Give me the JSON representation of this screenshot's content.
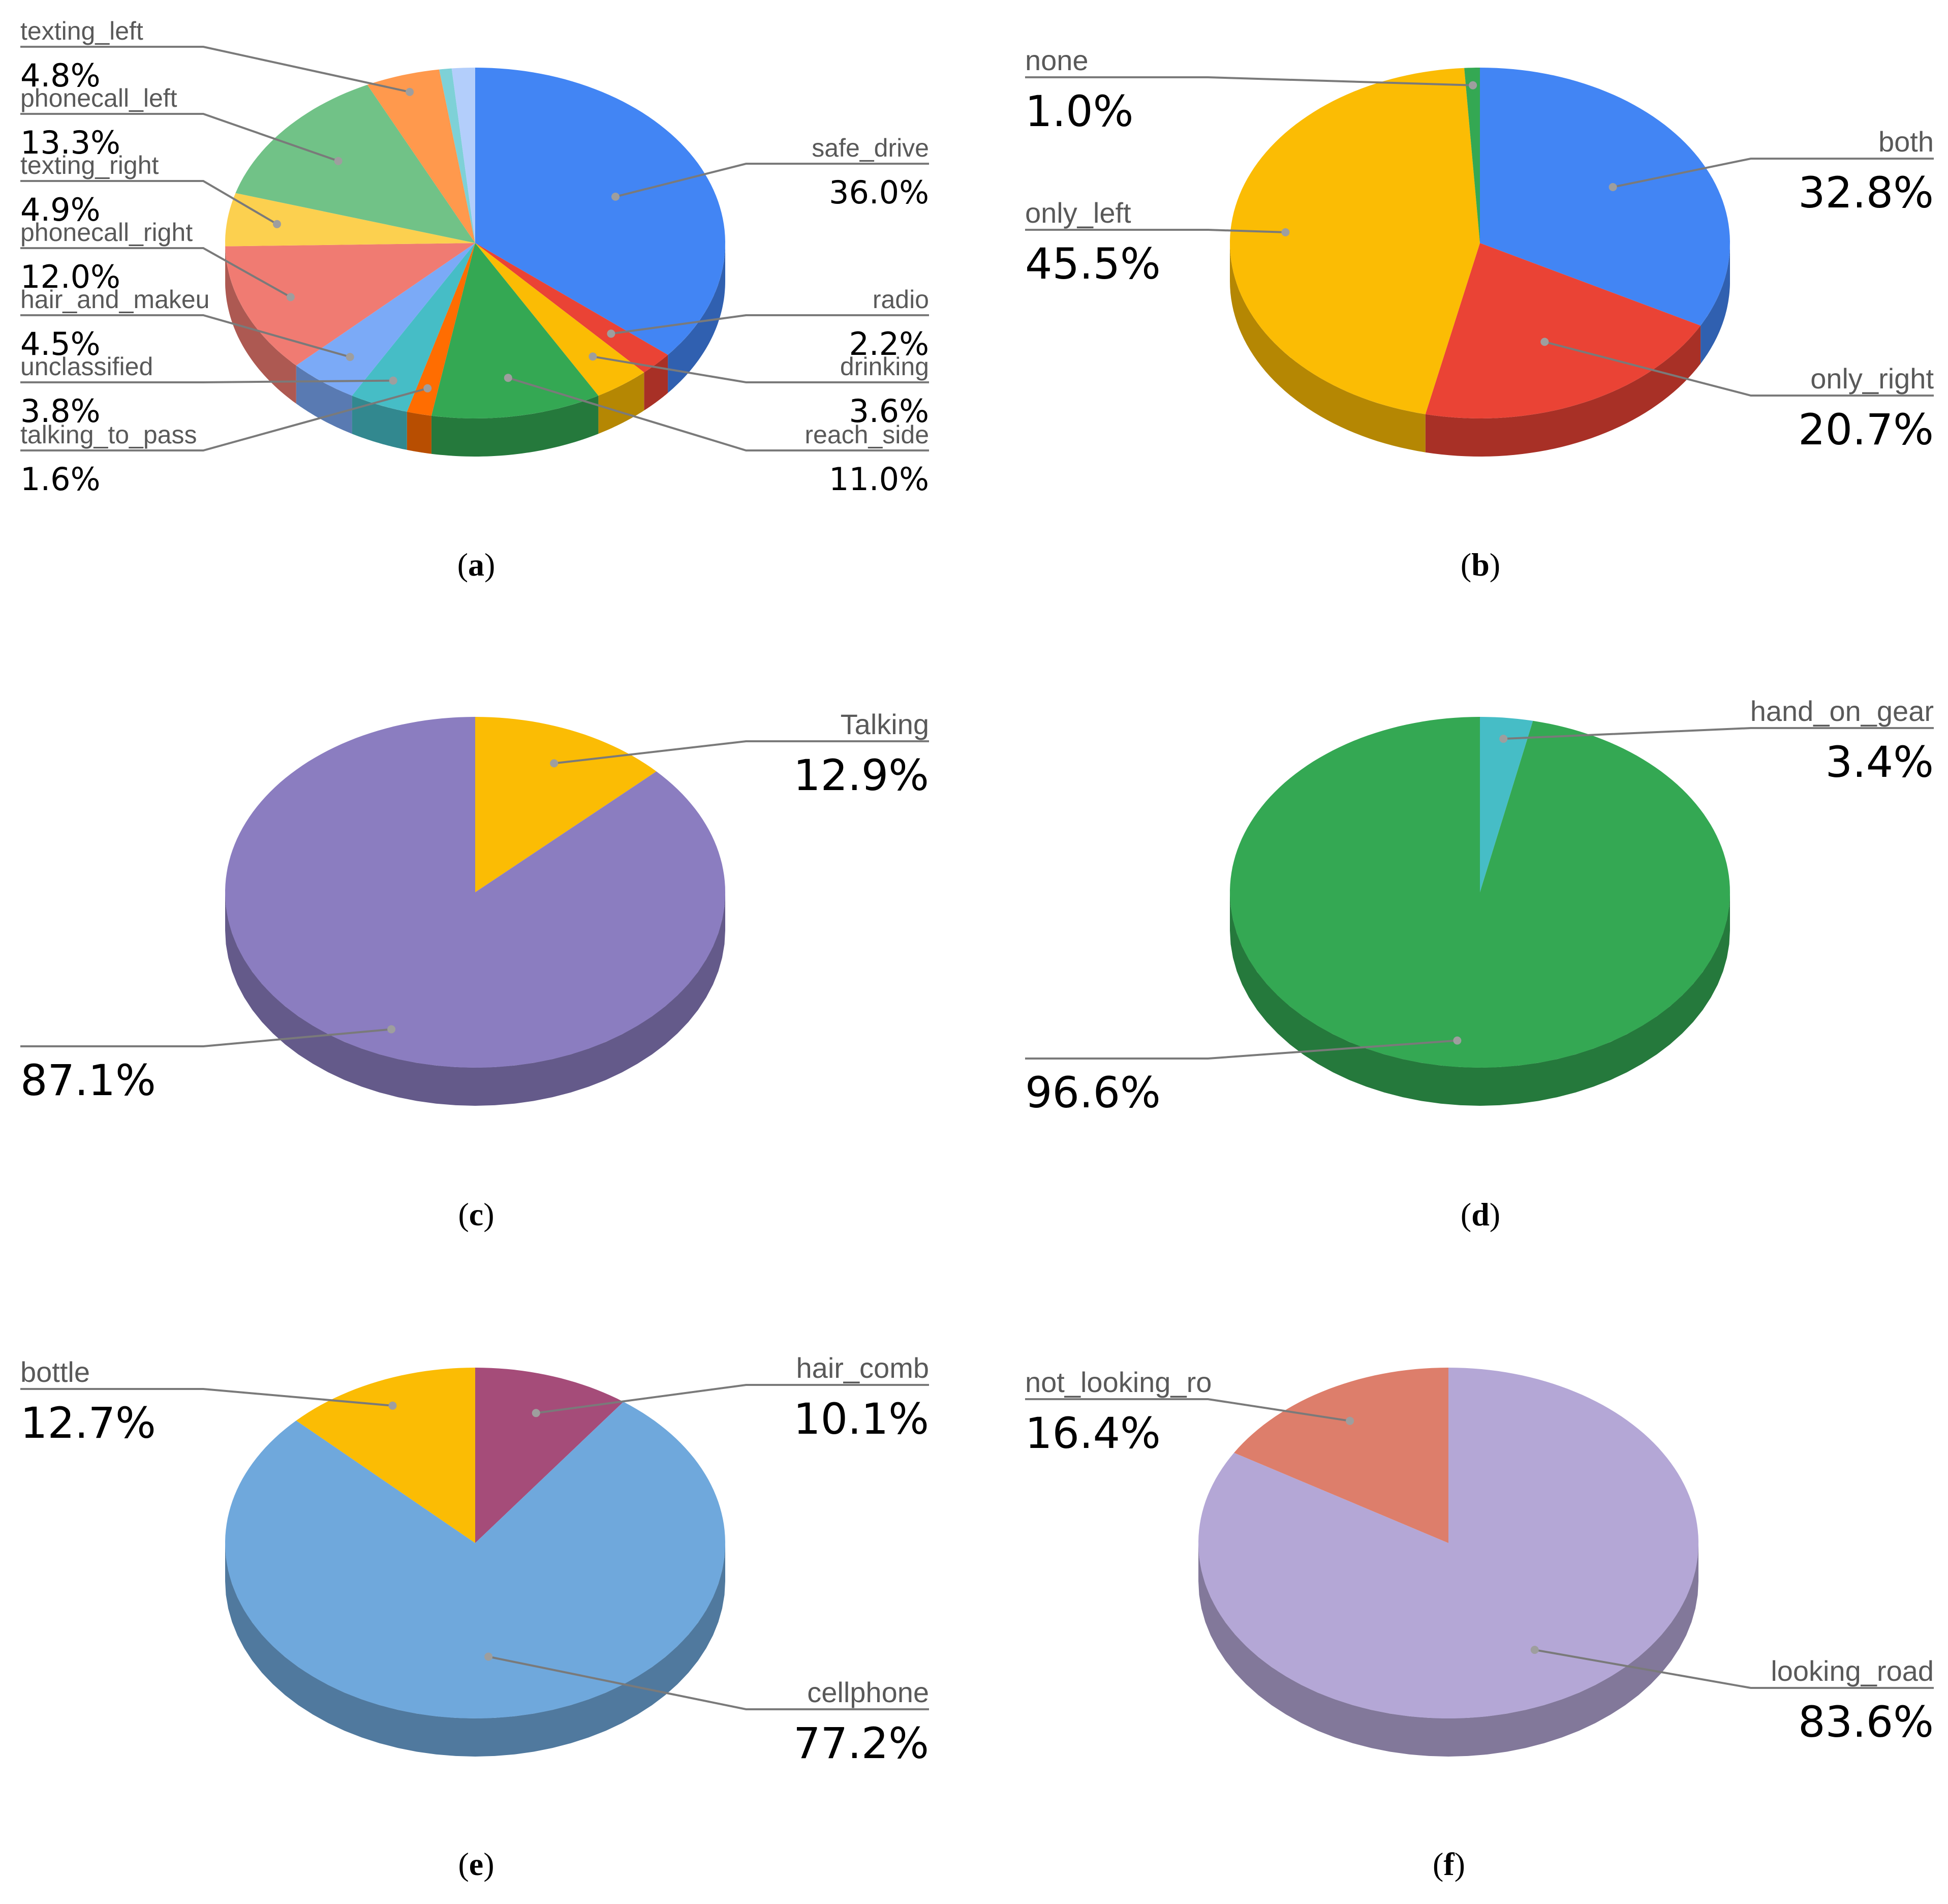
{
  "chart_data": [
    {
      "type": "pie",
      "caption": "a",
      "slices": [
        {
          "label": "safe_drive",
          "value": 36.0,
          "value_label": "36.0%",
          "color": "#4285F4"
        },
        {
          "label": "radio",
          "value": 2.2,
          "value_label": "2.2%",
          "color": "#EA4335"
        },
        {
          "label": "drinking",
          "value": 3.6,
          "value_label": "3.6%",
          "color": "#FBBC04"
        },
        {
          "label": "reach_side",
          "value": 11.0,
          "value_label": "11.0%",
          "color": "#34A853"
        },
        {
          "label": "talking_to_pass",
          "value": 1.6,
          "value_label": "1.6%",
          "color": "#FF6D01"
        },
        {
          "label": "unclassified",
          "value": 3.8,
          "value_label": "3.8%",
          "color": "#46BDC6"
        },
        {
          "label": "hair_and_makeu",
          "value": 4.5,
          "value_label": "4.5%",
          "color": "#7BAAF7"
        },
        {
          "label": "phonecall_right",
          "value": 12.0,
          "value_label": "12.0%",
          "color": "#F07B72"
        },
        {
          "label": "texting_right",
          "value": 4.9,
          "value_label": "4.9%",
          "color": "#FCD04F"
        },
        {
          "label": "phonecall_left",
          "value": 13.3,
          "value_label": "13.3%",
          "color": "#71C287"
        },
        {
          "label": "texting_left",
          "value": 4.8,
          "value_label": "4.8%",
          "color": "#FF994D"
        },
        {
          "label": "",
          "value": 0.8,
          "value_label": "",
          "color": "#7ED1D7"
        },
        {
          "label": "",
          "value": 1.5,
          "value_label": "",
          "color": "#B3CEFB"
        }
      ]
    },
    {
      "type": "pie",
      "caption": "b",
      "slices": [
        {
          "label": "both",
          "value": 32.8,
          "value_label": "32.8%",
          "color": "#4285F4"
        },
        {
          "label": "only_right",
          "value": 20.7,
          "value_label": "20.7%",
          "color": "#EA4335"
        },
        {
          "label": "only_left",
          "value": 45.5,
          "value_label": "45.5%",
          "color": "#FBBC04"
        },
        {
          "label": "none",
          "value": 1.0,
          "value_label": "1.0%",
          "color": "#34A853"
        }
      ]
    },
    {
      "type": "pie",
      "caption": "c",
      "slices": [
        {
          "label": "Talking",
          "value": 12.9,
          "value_label": "12.9%",
          "color": "#FBBC04"
        },
        {
          "label": "",
          "value": 87.1,
          "value_label": "87.1%",
          "color": "#8B7DC0"
        }
      ]
    },
    {
      "type": "pie",
      "caption": "d",
      "slices": [
        {
          "label": "hand_on_gear",
          "value": 3.4,
          "value_label": "3.4%",
          "color": "#46BDC6"
        },
        {
          "label": "",
          "value": 96.6,
          "value_label": "96.6%",
          "color": "#34A853"
        }
      ]
    },
    {
      "type": "pie",
      "caption": "e",
      "slices": [
        {
          "label": "hair_comb",
          "value": 10.1,
          "value_label": "10.1%",
          "color": "#A54C79"
        },
        {
          "label": "cellphone",
          "value": 77.2,
          "value_label": "77.2%",
          "color": "#6FA8DC"
        },
        {
          "label": "bottle",
          "value": 12.7,
          "value_label": "12.7%",
          "color": "#FBBC04"
        }
      ]
    },
    {
      "type": "pie",
      "caption": "f",
      "slices": [
        {
          "label": "looking_road",
          "value": 83.6,
          "value_label": "83.6%",
          "color": "#B4A7D6"
        },
        {
          "label": "not_looking_ro",
          "value": 16.4,
          "value_label": "16.4%",
          "color": "#DD7E6B"
        }
      ]
    }
  ]
}
